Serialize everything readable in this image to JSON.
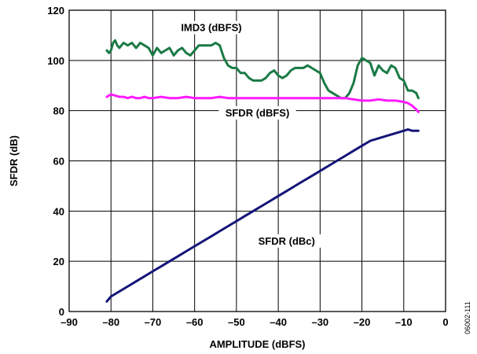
{
  "chart_data": {
    "type": "line",
    "xlabel": "AMPLITUDE (dBFS)",
    "ylabel": "SFDR (dB)",
    "xlim": [
      -90,
      0
    ],
    "ylim": [
      0,
      120
    ],
    "x_ticks": [
      -90,
      -80,
      -70,
      -60,
      -50,
      -40,
      -30,
      -20,
      -10,
      0
    ],
    "x_tick_labels": [
      "–90",
      "–80",
      "–70",
      "–60",
      "–50",
      "–40",
      "–30",
      "–20",
      "–10",
      "0"
    ],
    "y_ticks": [
      0,
      20,
      40,
      60,
      80,
      100,
      120
    ],
    "y_tick_labels": [
      "0",
      "20",
      "40",
      "60",
      "80",
      "100",
      "120"
    ],
    "grid": true,
    "figure_id": "06002-111",
    "series": [
      {
        "name": "IMD3 (dBFS)",
        "color": "#1a7a45",
        "label_pos": [
          -56,
          112
        ],
        "x": [
          -81,
          -80.5,
          -80,
          -79.5,
          -79,
          -78.5,
          -78,
          -77.5,
          -77,
          -76,
          -75,
          -74,
          -73,
          -72,
          -71,
          -70,
          -69,
          -68,
          -67,
          -66,
          -65,
          -64,
          -63,
          -62,
          -61,
          -60,
          -59,
          -58,
          -57,
          -56,
          -55,
          -54,
          -53,
          -52,
          -51,
          -50,
          -49,
          -48,
          -47,
          -46,
          -45,
          -44,
          -43,
          -42,
          -41,
          -40,
          -39,
          -38,
          -37,
          -36,
          -35,
          -34,
          -33,
          -32,
          -31,
          -30,
          -29,
          -28,
          -27,
          -26,
          -25,
          -24,
          -23,
          -22,
          -21,
          -20,
          -19,
          -18,
          -17,
          -16,
          -15,
          -14,
          -13,
          -12,
          -11,
          -10,
          -9,
          -8,
          -7,
          -6.5
        ],
        "values": [
          104,
          103,
          104,
          107,
          108,
          106,
          105,
          106,
          107,
          106,
          107,
          105,
          107,
          106,
          105,
          102,
          105,
          103,
          104,
          105,
          102,
          104,
          105,
          103,
          102,
          104,
          106,
          106,
          106,
          106,
          107,
          106,
          101,
          98,
          97,
          97,
          95,
          95,
          93,
          92,
          92,
          92,
          93,
          95,
          96,
          94,
          93,
          94,
          96,
          97,
          97,
          97,
          98,
          97,
          96,
          95,
          91,
          88,
          87,
          86,
          85,
          85,
          87,
          91,
          98,
          101,
          100,
          99,
          94,
          98,
          96,
          95,
          98,
          97,
          93,
          92,
          88,
          88,
          87,
          85
        ]
      },
      {
        "name": "SFDR (dBFS)",
        "color": "#ff1aff",
        "label_pos": [
          -45,
          78
        ],
        "x": [
          -81,
          -80,
          -79,
          -78,
          -77,
          -76,
          -75,
          -74,
          -73,
          -72,
          -71,
          -70,
          -68,
          -66,
          -64,
          -62,
          -60,
          -58,
          -56,
          -54,
          -52,
          -50,
          -48,
          -46,
          -44,
          -42,
          -40,
          -38,
          -36,
          -34,
          -32,
          -30,
          -28,
          -26,
          -24,
          -22,
          -20,
          -18,
          -16,
          -14,
          -12,
          -10,
          -9,
          -8,
          -7,
          -6.5
        ],
        "values": [
          85.5,
          86.5,
          86,
          85.5,
          85.5,
          85,
          85.5,
          85,
          85,
          85.5,
          85,
          85,
          85.5,
          85,
          85,
          85.5,
          85,
          85,
          85,
          85.5,
          85,
          85,
          85,
          85,
          85,
          85,
          85,
          85,
          85,
          85,
          85,
          85,
          85,
          85,
          85,
          84.5,
          84,
          84,
          84.5,
          84,
          84,
          83.5,
          83,
          82,
          80.5,
          79.5
        ]
      },
      {
        "name": "SFDR (dBc)",
        "color": "#141478",
        "label_pos": [
          -38,
          27
        ],
        "x": [
          -81,
          -80,
          -78,
          -76,
          -74,
          -72,
          -70,
          -68,
          -66,
          -64,
          -62,
          -60,
          -58,
          -56,
          -54,
          -52,
          -50,
          -48,
          -46,
          -44,
          -42,
          -40,
          -38,
          -36,
          -34,
          -32,
          -30,
          -28,
          -26,
          -24,
          -22,
          -20,
          -18,
          -16,
          -14,
          -12,
          -10,
          -9,
          -8,
          -7,
          -6.5
        ],
        "values": [
          4,
          6,
          8,
          10,
          12,
          14,
          16,
          18,
          20,
          22,
          24,
          26,
          28,
          30,
          32,
          34,
          36,
          38,
          40,
          42,
          44,
          46,
          48,
          50,
          52,
          54,
          56,
          58,
          60,
          62,
          64,
          66,
          68,
          69,
          70,
          71,
          72,
          72.5,
          72,
          72,
          72
        ]
      }
    ]
  }
}
